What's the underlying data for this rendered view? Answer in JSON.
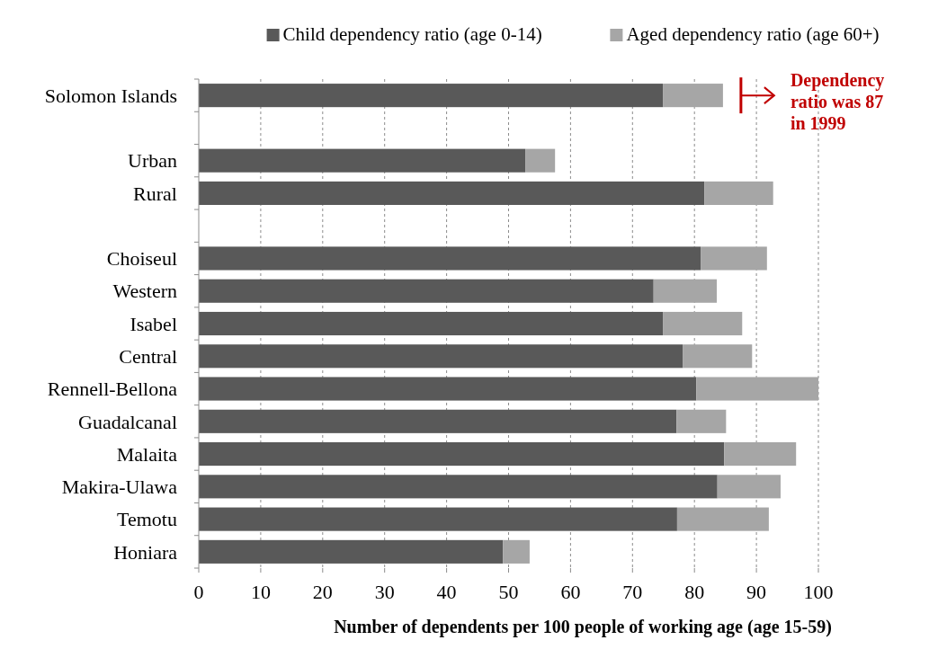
{
  "chart_data": {
    "type": "bar",
    "orientation": "horizontal",
    "stacked": true,
    "categories": [
      "Solomon Islands",
      null,
      "Urban",
      "Rural",
      null,
      "Choiseul",
      "Western",
      "Isabel",
      "Central",
      "Rennell-Bellona",
      "Guadalcanal",
      "Malaita",
      "Makira-Ulawa",
      "Temotu",
      "Honiara"
    ],
    "series": [
      {
        "name": "Child dependency ratio (age 0-14)",
        "color": "#595959",
        "values": [
          74.9,
          null,
          52.7,
          81.6,
          null,
          81.0,
          73.4,
          74.9,
          78.1,
          80.3,
          77.1,
          84.8,
          83.7,
          77.2,
          49.1
        ]
      },
      {
        "name": "Aged dependency ratio (age 60+)",
        "color": "#a6a6a6",
        "values": [
          9.7,
          null,
          4.8,
          11.1,
          null,
          10.7,
          10.2,
          12.8,
          11.2,
          19.7,
          8.0,
          11.6,
          10.2,
          14.8,
          4.3
        ]
      }
    ],
    "xlim": [
      0,
      100
    ],
    "xticks": [
      0,
      10,
      20,
      30,
      40,
      50,
      60,
      70,
      80,
      90,
      100
    ],
    "xlabel": "Number of dependents per 100 people of working age (age 15-59)",
    "grid": "x",
    "legend": "top",
    "annotations": [
      "Dependency ratio was 87 in 1999"
    ]
  }
}
